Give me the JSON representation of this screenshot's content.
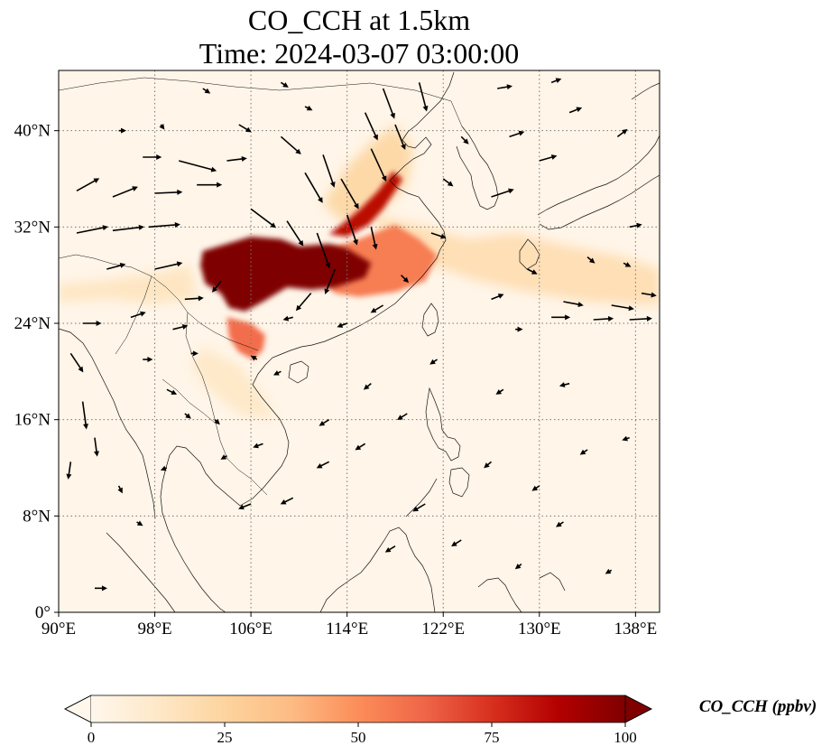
{
  "title": {
    "line1": "CO_CCH at 1.5km",
    "line2": "Time: 2024-03-07 03:00:00"
  },
  "map": {
    "extent": {
      "lon_min": 90,
      "lon_max": 140,
      "lat_min": 0,
      "lat_max": 45
    },
    "x_ticks": [
      {
        "value": 90,
        "label": "90°E"
      },
      {
        "value": 98,
        "label": "98°E"
      },
      {
        "value": 106,
        "label": "106°E"
      },
      {
        "value": 114,
        "label": "114°E"
      },
      {
        "value": 122,
        "label": "122°E"
      },
      {
        "value": 130,
        "label": "130°E"
      },
      {
        "value": 138,
        "label": "138°E"
      }
    ],
    "y_ticks": [
      {
        "value": 0,
        "label": "0°"
      },
      {
        "value": 8,
        "label": "8°N"
      },
      {
        "value": 16,
        "label": "16°N"
      },
      {
        "value": 24,
        "label": "24°N"
      },
      {
        "value": 32,
        "label": "32°N"
      },
      {
        "value": 40,
        "label": "40°N"
      }
    ],
    "gridlines": true,
    "colormap": "OrRd",
    "background_color": "#fff5e8",
    "concentration_regions": [
      {
        "name": "sichuan-central-plume",
        "level": 100,
        "outline": [
          [
            102,
            30
          ],
          [
            104,
            30.6
          ],
          [
            106,
            31.2
          ],
          [
            108.5,
            31
          ],
          [
            110,
            30.4
          ],
          [
            112.5,
            30.6
          ],
          [
            114,
            30.2
          ],
          [
            116,
            29
          ],
          [
            115.5,
            27.8
          ],
          [
            113,
            27
          ],
          [
            111,
            26.8
          ],
          [
            109,
            27
          ],
          [
            107,
            25.8
          ],
          [
            105.5,
            25
          ],
          [
            104.2,
            25.3
          ],
          [
            103.5,
            26.5
          ],
          [
            102.2,
            27.3
          ],
          [
            101.8,
            28.8
          ]
        ]
      },
      {
        "name": "north-china-band",
        "level": 85,
        "outline": [
          [
            114,
            31.2
          ],
          [
            115.8,
            32.2
          ],
          [
            117,
            33.5
          ],
          [
            118,
            35
          ],
          [
            118.6,
            36
          ],
          [
            117.8,
            36.6
          ],
          [
            116.6,
            35
          ],
          [
            115.2,
            33.6
          ],
          [
            113.8,
            32.4
          ],
          [
            112.5,
            31.4
          ]
        ]
      },
      {
        "name": "east-china-plume",
        "level": 55,
        "outline": [
          [
            112,
            30
          ],
          [
            115,
            31
          ],
          [
            118,
            32.2
          ],
          [
            120,
            31
          ],
          [
            121.5,
            29.6
          ],
          [
            120.5,
            27.5
          ],
          [
            118,
            26.6
          ],
          [
            115,
            26.2
          ],
          [
            113,
            26.5
          ],
          [
            111.5,
            28
          ]
        ]
      },
      {
        "name": "guangxi-tongkin-plume",
        "level": 60,
        "outline": [
          [
            104,
            24.5
          ],
          [
            106,
            24
          ],
          [
            107.2,
            23
          ],
          [
            107,
            21.8
          ],
          [
            106.2,
            21
          ],
          [
            105,
            21.6
          ],
          [
            104.2,
            22.8
          ]
        ]
      },
      {
        "name": "outflow-east",
        "level": 18,
        "outline": [
          [
            116,
            33
          ],
          [
            120,
            32.2
          ],
          [
            124,
            31
          ],
          [
            128,
            31.5
          ],
          [
            132,
            30.5
          ],
          [
            137,
            29.5
          ],
          [
            140,
            28.5
          ],
          [
            140,
            25.5
          ],
          [
            134,
            25.8
          ],
          [
            129,
            26.6
          ],
          [
            125,
            27.5
          ],
          [
            122,
            28.5
          ],
          [
            119,
            29.5
          ],
          [
            117,
            31
          ]
        ]
      },
      {
        "name": "westward-tongue",
        "level": 14,
        "outline": [
          [
            90,
            27.2
          ],
          [
            94,
            27.6
          ],
          [
            98,
            28.2
          ],
          [
            101,
            28.8
          ],
          [
            101.5,
            26
          ],
          [
            98,
            25.6
          ],
          [
            94,
            26
          ],
          [
            90,
            25.8
          ]
        ]
      },
      {
        "name": "north-china-broad",
        "level": 22,
        "outline": [
          [
            112,
            34
          ],
          [
            114,
            37
          ],
          [
            116,
            39
          ],
          [
            118,
            40.5
          ],
          [
            119.5,
            38.5
          ],
          [
            119,
            35.5
          ],
          [
            116.5,
            33
          ],
          [
            113.5,
            32.5
          ]
        ]
      },
      {
        "name": "indochina-haze",
        "level": 12,
        "outline": [
          [
            102,
            22
          ],
          [
            105,
            20.5
          ],
          [
            107,
            18
          ],
          [
            108,
            16
          ],
          [
            105,
            16.5
          ],
          [
            102.5,
            18.5
          ],
          [
            101,
            20.5
          ]
        ]
      }
    ],
    "wind_vectors": [
      {
        "lon": 91.5,
        "lat": 31.5,
        "u": 2.5,
        "v": 0.5
      },
      {
        "lon": 94.5,
        "lat": 31.7,
        "u": 2.5,
        "v": 0.3
      },
      {
        "lon": 97.5,
        "lat": 32.0,
        "u": 2.5,
        "v": 0.2
      },
      {
        "lon": 91.5,
        "lat": 35.0,
        "u": 1.8,
        "v": 1.0
      },
      {
        "lon": 94.5,
        "lat": 34.5,
        "u": 2.0,
        "v": 0.8
      },
      {
        "lon": 98.0,
        "lat": 34.8,
        "u": 2.2,
        "v": 0.1
      },
      {
        "lon": 101.5,
        "lat": 35.5,
        "u": 2.0,
        "v": 0.0
      },
      {
        "lon": 100.0,
        "lat": 37.5,
        "u": 3.0,
        "v": -0.8
      },
      {
        "lon": 97.0,
        "lat": 37.8,
        "u": 1.5,
        "v": 0.0
      },
      {
        "lon": 105.0,
        "lat": 40.5,
        "u": 1.0,
        "v": -0.6
      },
      {
        "lon": 108.5,
        "lat": 39.5,
        "u": 1.6,
        "v": -1.4
      },
      {
        "lon": 110.5,
        "lat": 36.5,
        "u": 1.4,
        "v": -2.4
      },
      {
        "lon": 112.0,
        "lat": 38.0,
        "u": 0.9,
        "v": -2.6
      },
      {
        "lon": 113.5,
        "lat": 36.0,
        "u": 1.4,
        "v": -2.4
      },
      {
        "lon": 116.0,
        "lat": 38.5,
        "u": 1.2,
        "v": -2.6
      },
      {
        "lon": 117.0,
        "lat": 43.5,
        "u": 0.9,
        "v": -2.4
      },
      {
        "lon": 120.0,
        "lat": 44.0,
        "u": 0.6,
        "v": -2.3
      },
      {
        "lon": 115.5,
        "lat": 41.5,
        "u": 1.0,
        "v": -2.2
      },
      {
        "lon": 118.0,
        "lat": 40.5,
        "u": 0.8,
        "v": -2.0
      },
      {
        "lon": 111.5,
        "lat": 31.5,
        "u": 1.0,
        "v": -2.8
      },
      {
        "lon": 109.0,
        "lat": 32.5,
        "u": 1.3,
        "v": -2.0
      },
      {
        "lon": 114.0,
        "lat": 33.0,
        "u": 0.8,
        "v": -2.4
      },
      {
        "lon": 116.0,
        "lat": 32.0,
        "u": 0.4,
        "v": -1.8
      },
      {
        "lon": 113.0,
        "lat": 28.5,
        "u": -0.8,
        "v": -2.0
      },
      {
        "lon": 111.0,
        "lat": 26.5,
        "u": -1.2,
        "v": -1.4
      },
      {
        "lon": 106.0,
        "lat": 33.5,
        "u": 2.0,
        "v": -1.5
      },
      {
        "lon": 103.5,
        "lat": 27.5,
        "u": -0.7,
        "v": -0.9
      },
      {
        "lon": 100.5,
        "lat": 26.0,
        "u": 1.5,
        "v": 0.1
      },
      {
        "lon": 98.0,
        "lat": 28.5,
        "u": 2.2,
        "v": 0.5
      },
      {
        "lon": 94.0,
        "lat": 28.5,
        "u": 1.5,
        "v": 0.4
      },
      {
        "lon": 92.0,
        "lat": 24.0,
        "u": 1.5,
        "v": 0.0
      },
      {
        "lon": 91.0,
        "lat": 21.5,
        "u": 1.0,
        "v": -1.5
      },
      {
        "lon": 92.0,
        "lat": 17.5,
        "u": 0.3,
        "v": -2.2
      },
      {
        "lon": 93.0,
        "lat": 14.5,
        "u": 0.2,
        "v": -1.5
      },
      {
        "lon": 91.0,
        "lat": 12.5,
        "u": -0.2,
        "v": -1.4
      },
      {
        "lon": 95.0,
        "lat": 10.5,
        "u": 0.3,
        "v": -0.6
      },
      {
        "lon": 96.5,
        "lat": 7.5,
        "u": 0.5,
        "v": -0.3
      },
      {
        "lon": 93.0,
        "lat": 2.0,
        "u": 1.0,
        "v": 0.0
      },
      {
        "lon": 99.0,
        "lat": 12.0,
        "u": -0.5,
        "v": -0.2
      },
      {
        "lon": 99.0,
        "lat": 18.5,
        "u": 0.8,
        "v": -0.4
      },
      {
        "lon": 100.5,
        "lat": 16.5,
        "u": 0.5,
        "v": -0.4
      },
      {
        "lon": 103.0,
        "lat": 16.0,
        "u": 0.4,
        "v": -0.4
      },
      {
        "lon": 104.0,
        "lat": 13.0,
        "u": -0.5,
        "v": -0.3
      },
      {
        "lon": 107.0,
        "lat": 14.0,
        "u": -0.8,
        "v": -0.3
      },
      {
        "lon": 106.0,
        "lat": 9.0,
        "u": -1.0,
        "v": -0.4
      },
      {
        "lon": 109.5,
        "lat": 9.5,
        "u": -1.0,
        "v": -0.5
      },
      {
        "lon": 112.5,
        "lat": 12.5,
        "u": -1.0,
        "v": -0.5
      },
      {
        "lon": 112.5,
        "lat": 16.0,
        "u": -0.8,
        "v": -0.5
      },
      {
        "lon": 115.5,
        "lat": 14.0,
        "u": -0.8,
        "v": -0.5
      },
      {
        "lon": 116.0,
        "lat": 19.0,
        "u": -0.6,
        "v": -0.5
      },
      {
        "lon": 119.0,
        "lat": 16.5,
        "u": -0.8,
        "v": -0.5
      },
      {
        "lon": 121.5,
        "lat": 21.0,
        "u": -0.6,
        "v": -0.4
      },
      {
        "lon": 120.5,
        "lat": 9.0,
        "u": -1.0,
        "v": -0.6
      },
      {
        "lon": 118.0,
        "lat": 5.5,
        "u": -0.8,
        "v": -0.5
      },
      {
        "lon": 123.5,
        "lat": 6.0,
        "u": -0.8,
        "v": -0.5
      },
      {
        "lon": 128.5,
        "lat": 4.0,
        "u": -0.5,
        "v": -0.4
      },
      {
        "lon": 126.0,
        "lat": 12.5,
        "u": -0.6,
        "v": -0.5
      },
      {
        "lon": 130.0,
        "lat": 10.5,
        "u": -0.6,
        "v": -0.4
      },
      {
        "lon": 132.0,
        "lat": 7.5,
        "u": -0.6,
        "v": -0.4
      },
      {
        "lon": 136.0,
        "lat": 3.5,
        "u": -0.5,
        "v": -0.3
      },
      {
        "lon": 134.0,
        "lat": 13.5,
        "u": -0.6,
        "v": -0.4
      },
      {
        "lon": 137.5,
        "lat": 14.5,
        "u": -0.6,
        "v": -0.2
      },
      {
        "lon": 132.5,
        "lat": 19.0,
        "u": -0.8,
        "v": -0.2
      },
      {
        "lon": 127.0,
        "lat": 18.5,
        "u": -0.6,
        "v": -0.4
      },
      {
        "lon": 128.0,
        "lat": 23.5,
        "u": 0.6,
        "v": 0.0
      },
      {
        "lon": 131.0,
        "lat": 24.5,
        "u": 1.5,
        "v": 0.0
      },
      {
        "lon": 134.5,
        "lat": 24.3,
        "u": 1.6,
        "v": 0.1
      },
      {
        "lon": 137.5,
        "lat": 24.3,
        "u": 1.8,
        "v": 0.1
      },
      {
        "lon": 126.0,
        "lat": 26.0,
        "u": 1.0,
        "v": 0.4
      },
      {
        "lon": 132.0,
        "lat": 25.8,
        "u": 1.6,
        "v": -0.3
      },
      {
        "lon": 136.0,
        "lat": 25.5,
        "u": 1.8,
        "v": -0.3
      },
      {
        "lon": 138.5,
        "lat": 26.5,
        "u": 1.2,
        "v": -0.2
      },
      {
        "lon": 129.0,
        "lat": 28.5,
        "u": 0.8,
        "v": -0.4
      },
      {
        "lon": 134.0,
        "lat": 29.5,
        "u": 0.6,
        "v": -0.5
      },
      {
        "lon": 137.0,
        "lat": 29.0,
        "u": 0.6,
        "v": -0.3
      },
      {
        "lon": 126.0,
        "lat": 34.5,
        "u": 1.8,
        "v": 0.6
      },
      {
        "lon": 130.0,
        "lat": 37.5,
        "u": 1.4,
        "v": 0.4
      },
      {
        "lon": 127.5,
        "lat": 39.5,
        "u": 1.2,
        "v": 0.4
      },
      {
        "lon": 132.5,
        "lat": 41.5,
        "u": 1.0,
        "v": 0.4
      },
      {
        "lon": 126.5,
        "lat": 43.5,
        "u": 1.2,
        "v": 0.2
      },
      {
        "lon": 131.0,
        "lat": 44.0,
        "u": 0.8,
        "v": 0.3
      },
      {
        "lon": 136.5,
        "lat": 39.5,
        "u": 0.8,
        "v": 0.6
      },
      {
        "lon": 137.5,
        "lat": 32.0,
        "u": 1.0,
        "v": 0.2
      },
      {
        "lon": 122.0,
        "lat": 36.0,
        "u": 0.8,
        "v": -0.6
      },
      {
        "lon": 123.5,
        "lat": 39.5,
        "u": 0.6,
        "v": -0.6
      },
      {
        "lon": 121.0,
        "lat": 31.5,
        "u": 1.2,
        "v": -0.4
      },
      {
        "lon": 118.5,
        "lat": 28.0,
        "u": 0.6,
        "v": -0.6
      },
      {
        "lon": 117.0,
        "lat": 25.5,
        "u": -1.0,
        "v": -0.6
      },
      {
        "lon": 114.0,
        "lat": 24.0,
        "u": -0.8,
        "v": -0.3
      },
      {
        "lon": 109.5,
        "lat": 24.5,
        "u": -0.8,
        "v": -0.2
      },
      {
        "lon": 106.5,
        "lat": 21.0,
        "u": -0.5,
        "v": 0.3
      },
      {
        "lon": 108.5,
        "lat": 20.0,
        "u": -0.6,
        "v": -0.3
      },
      {
        "lon": 101.0,
        "lat": 21.5,
        "u": 0.6,
        "v": 0.0
      },
      {
        "lon": 97.0,
        "lat": 21.0,
        "u": 0.8,
        "v": 0.0
      },
      {
        "lon": 96.0,
        "lat": 24.5,
        "u": 1.2,
        "v": 0.4
      },
      {
        "lon": 99.5,
        "lat": 23.5,
        "u": 1.2,
        "v": 0.3
      },
      {
        "lon": 104.0,
        "lat": 37.5,
        "u": 1.6,
        "v": 0.2
      },
      {
        "lon": 98.5,
        "lat": 40.5,
        "u": 0.3,
        "v": -0.4
      },
      {
        "lon": 95.0,
        "lat": 40.0,
        "u": 0.6,
        "v": 0.0
      },
      {
        "lon": 102.0,
        "lat": 43.5,
        "u": 0.6,
        "v": -0.4
      },
      {
        "lon": 108.5,
        "lat": 44.0,
        "u": 0.6,
        "v": -0.4
      },
      {
        "lon": 110.5,
        "lat": 42.0,
        "u": 0.6,
        "v": -0.3
      }
    ]
  },
  "colorbar": {
    "label": "CO_CCH (ppbv)",
    "min": 0,
    "max": 100,
    "extend": "both",
    "ticks": [
      {
        "value": 0,
        "label": "0"
      },
      {
        "value": 25,
        "label": "25"
      },
      {
        "value": 50,
        "label": "50"
      },
      {
        "value": 75,
        "label": "75"
      },
      {
        "value": 100,
        "label": "100"
      }
    ],
    "colors": [
      "#fff7ec",
      "#fee8c8",
      "#fdd49e",
      "#fdbb84",
      "#fc8d59",
      "#ef6548",
      "#d7301f",
      "#b30000",
      "#7f0000"
    ]
  }
}
